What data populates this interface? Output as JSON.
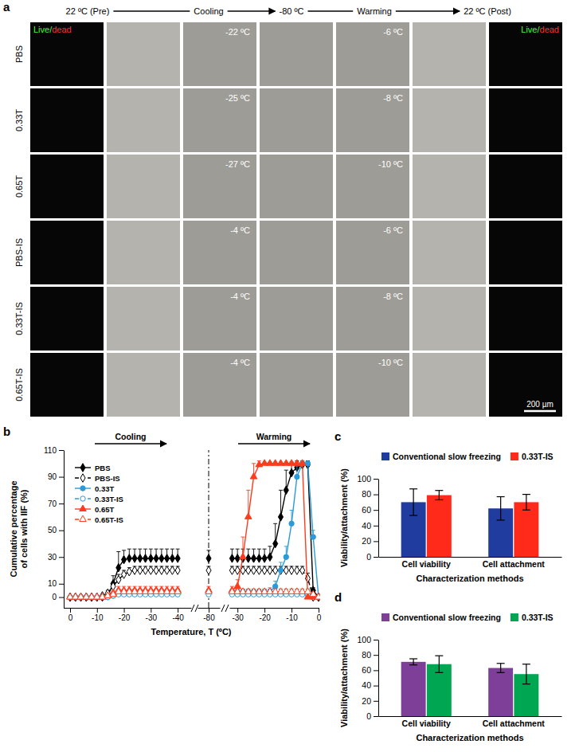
{
  "micrograph_grid": {
    "panel_label": "a",
    "header": {
      "start": "22 ºC (Pre)",
      "cooling": "Cooling",
      "cold": "-80 ºC",
      "warming": "Warming",
      "end": "22 ºC (Post)"
    },
    "live_dead_labels": [
      {
        "live": "Live/",
        "dead": "dead"
      },
      {
        "live": "Live/",
        "dead": "dead"
      }
    ],
    "scale_bar": "200 µm",
    "rows": [
      {
        "label": "PBS",
        "cooling_temp": "-22 ºC",
        "warming_temp": "-6 ºC"
      },
      {
        "label": "0.33T",
        "cooling_temp": "-25 ºC",
        "warming_temp": "-8 ºC"
      },
      {
        "label": "0.65T",
        "cooling_temp": "-27 ºC",
        "warming_temp": "-10 ºC"
      },
      {
        "label": "PBS-IS",
        "cooling_temp": "-4 ºC",
        "warming_temp": "-6 ºC"
      },
      {
        "label": "0.33T-IS",
        "cooling_temp": "-4 ºC",
        "warming_temp": "-8 ºC"
      },
      {
        "label": "0.65T-IS",
        "cooling_temp": "-4 ºC",
        "warming_temp": "-10 ºC"
      }
    ]
  },
  "chart_data": [
    {
      "type": "line",
      "panel_label": "b",
      "xlabel": "Temperature, T (ºC)",
      "ylabel": "Cumulative percentage of cells with IIF (%)",
      "phase_labels": [
        "Cooling",
        "Warming"
      ],
      "ylim": [
        -8,
        110
      ],
      "yticks": [
        0,
        10,
        30,
        50,
        70,
        90,
        110
      ],
      "legend": "top-left",
      "cooling": {
        "x": [
          0,
          -2,
          -4,
          -6,
          -8,
          -10,
          -12,
          -14,
          -16,
          -18,
          -20,
          -22,
          -24,
          -26,
          -28,
          -30,
          -32,
          -34,
          -36,
          -38,
          -40
        ],
        "xlim": [
          0,
          -45
        ],
        "xticks": [
          0,
          -10,
          -20,
          -30,
          -40
        ]
      },
      "hold": {
        "x": -80,
        "xticks": [
          -80
        ]
      },
      "warming": {
        "x": [
          -32,
          -30,
          -28,
          -26,
          -24,
          -22,
          -20,
          -18,
          -16,
          -14,
          -12,
          -10,
          -8,
          -6,
          -4,
          -2,
          0
        ],
        "xlim": [
          -33,
          0
        ],
        "xticks": [
          -30,
          -20,
          -10,
          0
        ]
      },
      "series": [
        {
          "name": "PBS",
          "color": "#000000",
          "marker": "diamond",
          "line_style": "solid",
          "cooling_values": [
            0,
            0,
            0,
            0,
            0,
            0,
            0,
            1,
            10,
            22,
            28,
            29,
            29,
            29,
            29,
            29,
            29,
            29,
            29,
            29,
            29
          ],
          "cooling_errors": [
            0,
            0,
            0,
            0,
            0,
            0,
            0,
            1,
            6,
            12,
            7,
            7,
            7,
            7,
            7,
            7,
            7,
            7,
            7,
            7,
            7
          ],
          "hold_value": 29,
          "hold_error": 6,
          "warming_values": [
            29,
            29,
            29,
            29,
            29,
            29,
            29,
            30,
            40,
            60,
            80,
            93,
            97,
            99,
            99,
            5,
            0
          ],
          "warming_errors": [
            7,
            7,
            7,
            7,
            7,
            7,
            7,
            8,
            15,
            20,
            15,
            8,
            5,
            3,
            3,
            2,
            0
          ]
        },
        {
          "name": "PBS-IS",
          "color": "#000000",
          "marker": "open-diamond",
          "line_style": "dashed",
          "cooling_values": [
            0,
            0,
            0,
            0,
            0,
            0,
            1,
            3,
            8,
            13,
            17,
            19,
            20,
            20,
            20,
            20,
            20,
            20,
            20,
            20,
            20
          ],
          "cooling_errors": [
            0,
            0,
            0,
            0,
            0,
            0,
            1,
            2,
            3,
            4,
            3,
            3,
            3,
            3,
            3,
            3,
            3,
            3,
            3,
            3,
            3
          ],
          "hold_value": 20,
          "hold_error": 3,
          "warming_values": [
            20,
            20,
            20,
            20,
            20,
            20,
            20,
            20,
            20,
            20,
            20,
            20,
            20,
            20,
            14,
            0,
            0
          ],
          "warming_errors": [
            3,
            3,
            3,
            3,
            3,
            3,
            3,
            3,
            3,
            3,
            3,
            3,
            3,
            3,
            4,
            0,
            0
          ]
        },
        {
          "name": "0.33T",
          "color": "#2a9bd8",
          "marker": "circle",
          "line_style": "solid",
          "cooling_values": [
            0,
            0,
            0,
            0,
            0,
            0,
            0,
            0,
            1,
            3,
            4,
            4,
            4,
            4,
            4,
            4,
            4,
            4,
            4,
            4,
            4
          ],
          "cooling_errors": [
            0,
            0,
            0,
            0,
            0,
            0,
            0,
            0,
            1,
            2,
            2,
            2,
            2,
            2,
            2,
            2,
            2,
            2,
            2,
            2,
            2
          ],
          "hold_value": 4,
          "hold_error": 2,
          "warming_values": [
            4,
            4,
            4,
            4,
            4,
            4,
            4,
            4,
            8,
            20,
            30,
            55,
            90,
            100,
            100,
            45,
            0
          ],
          "warming_errors": [
            2,
            2,
            2,
            2,
            2,
            2,
            2,
            3,
            4,
            6,
            8,
            10,
            8,
            2,
            1,
            5,
            0
          ]
        },
        {
          "name": "0.33T-IS",
          "color": "#2a9bd8",
          "marker": "open-circle",
          "line_style": "dashed",
          "cooling_values": [
            0,
            0,
            0,
            0,
            0,
            0,
            0,
            0,
            1,
            2,
            2,
            2,
            2,
            2,
            2,
            2,
            2,
            2,
            2,
            2,
            2
          ],
          "cooling_errors": [
            0,
            0,
            0,
            0,
            0,
            0,
            0,
            0,
            1,
            1,
            1,
            1,
            1,
            1,
            1,
            1,
            1,
            1,
            1,
            1,
            1
          ],
          "hold_value": 2,
          "hold_error": 1,
          "warming_values": [
            2,
            2,
            2,
            2,
            2,
            2,
            2,
            2,
            2,
            2,
            2,
            2,
            2,
            2,
            2,
            1,
            0
          ],
          "warming_errors": [
            1,
            1,
            1,
            1,
            1,
            1,
            1,
            1,
            1,
            1,
            1,
            1,
            1,
            1,
            1,
            1,
            0
          ]
        },
        {
          "name": "0.65T",
          "color": "#ff3b1f",
          "marker": "triangle",
          "line_style": "solid",
          "cooling_values": [
            0,
            0,
            0,
            0,
            0,
            0,
            0,
            1,
            3,
            5,
            5,
            5,
            5,
            5,
            5,
            5,
            5,
            5,
            5,
            5,
            5
          ],
          "cooling_errors": [
            0,
            0,
            0,
            0,
            0,
            0,
            0,
            1,
            2,
            3,
            3,
            3,
            3,
            3,
            3,
            3,
            3,
            3,
            3,
            3,
            3
          ],
          "hold_value": 5,
          "hold_error": 3,
          "warming_values": [
            5,
            8,
            30,
            60,
            90,
            99,
            100,
            100,
            100,
            100,
            100,
            100,
            100,
            100,
            0,
            0,
            0
          ],
          "warming_errors": [
            3,
            5,
            15,
            20,
            10,
            3,
            1,
            1,
            1,
            1,
            1,
            1,
            1,
            1,
            0,
            0,
            0
          ]
        },
        {
          "name": "0.65T-IS",
          "color": "#ff3b1f",
          "marker": "open-triangle",
          "line_style": "dashed",
          "cooling_values": [
            0,
            0,
            0,
            0,
            0,
            0,
            0,
            1,
            2,
            4,
            4,
            4,
            4,
            4,
            4,
            4,
            4,
            4,
            4,
            4,
            4
          ],
          "cooling_errors": [
            0,
            0,
            0,
            0,
            0,
            0,
            0,
            1,
            2,
            2,
            2,
            2,
            2,
            2,
            2,
            2,
            2,
            2,
            2,
            2,
            2
          ],
          "hold_value": 4,
          "hold_error": 2,
          "warming_values": [
            4,
            4,
            4,
            4,
            4,
            4,
            4,
            4,
            4,
            4,
            4,
            4,
            4,
            4,
            4,
            2,
            0
          ],
          "warming_errors": [
            2,
            2,
            2,
            2,
            2,
            2,
            2,
            2,
            2,
            2,
            2,
            2,
            2,
            2,
            2,
            1,
            0
          ]
        }
      ]
    },
    {
      "type": "bar",
      "panel_label": "c",
      "xlabel": "Characterization methods",
      "ylabel": "Viability/attachment (%)",
      "categories": [
        "Cell viability",
        "Cell attachment"
      ],
      "ylim": [
        0,
        100
      ],
      "yticks": [
        0,
        20,
        40,
        60,
        80,
        100
      ],
      "legend": "top",
      "series": [
        {
          "name": "Conventional slow freezing",
          "color": "#1f3c9e",
          "values": [
            70,
            62
          ],
          "errors": [
            17,
            15
          ]
        },
        {
          "name": "0.33T-IS",
          "color": "#ff2a1a",
          "values": [
            79,
            70
          ],
          "errors": [
            6,
            10
          ]
        }
      ]
    },
    {
      "type": "bar",
      "panel_label": "d",
      "xlabel": "Characterization methods",
      "ylabel": "Viability/attachment (%)",
      "categories": [
        "Cell viability",
        "Cell attachment"
      ],
      "ylim": [
        0,
        100
      ],
      "yticks": [
        0,
        20,
        40,
        60,
        80,
        100
      ],
      "legend": "top",
      "series": [
        {
          "name": "Conventional slow freezing",
          "color": "#7e3f98",
          "values": [
            71,
            63
          ],
          "errors": [
            4,
            6
          ]
        },
        {
          "name": "0.33T-IS",
          "color": "#00a651",
          "values": [
            68,
            55
          ],
          "errors": [
            11,
            13
          ]
        }
      ]
    }
  ]
}
